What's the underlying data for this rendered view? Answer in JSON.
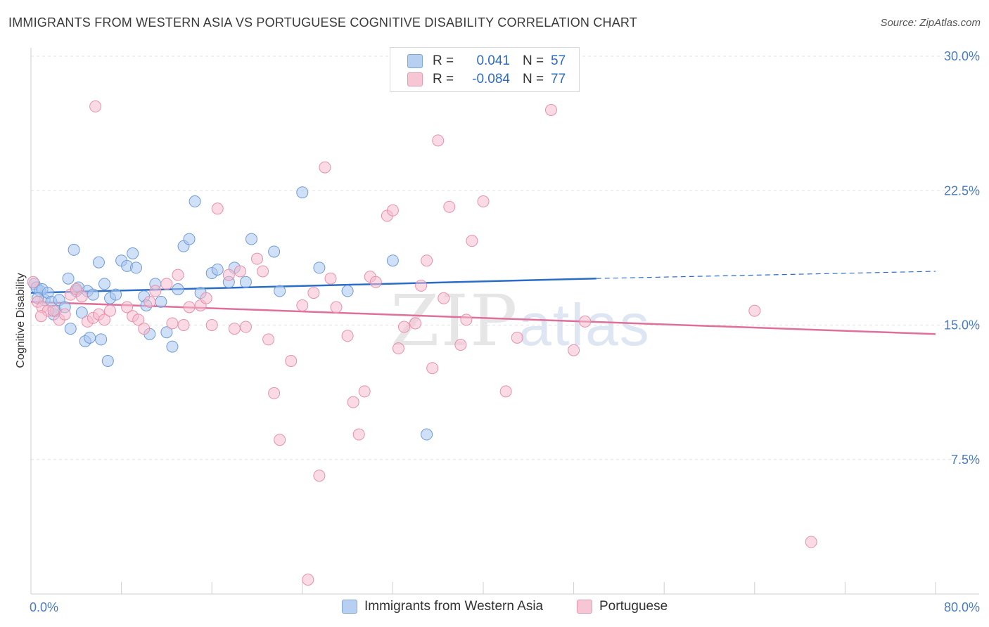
{
  "title": "IMMIGRANTS FROM WESTERN ASIA VS PORTUGUESE COGNITIVE DISABILITY CORRELATION CHART",
  "source": "Source: ZipAtlas.com",
  "watermark": {
    "zip": "ZIP",
    "atlas": "atlas"
  },
  "legend": {
    "r_label": "R =",
    "n_label": "N =",
    "rows": [
      {
        "r": "0.041",
        "n": "57",
        "color": "#b7cff0",
        "border": "#7fa6dd"
      },
      {
        "r": "-0.084",
        "n": "77",
        "color": "#f7c6d4",
        "border": "#e99ab1"
      }
    ]
  },
  "chart_data": {
    "type": "scatter",
    "title": "IMMIGRANTS FROM WESTERN ASIA VS PORTUGUESE COGNITIVE DISABILITY CORRELATION CHART",
    "xlabel": "",
    "ylabel": "Cognitive Disability",
    "xlim": [
      0,
      80
    ],
    "ylim": [
      0,
      30
    ],
    "x_tick_labels": [
      "0.0%",
      "80.0%"
    ],
    "y_ticks": [
      7.5,
      15.0,
      22.5,
      30.0
    ],
    "y_tick_labels": [
      "7.5%",
      "15.0%",
      "22.5%",
      "30.0%"
    ],
    "grid": true,
    "legend_position": "top-center",
    "series": [
      {
        "name": "Immigrants from Western Asia",
        "color": "#a9c6ef",
        "stroke": "#6f9bd8",
        "trend": {
          "x0": 0,
          "y0": 16.8,
          "x1": 50,
          "y1": 17.6,
          "x_dash_end": 80,
          "y_dash_end": 18.0,
          "color": "#2a6dc9"
        },
        "points": [
          [
            0.3,
            17.3
          ],
          [
            0.5,
            17.1
          ],
          [
            0.8,
            16.9
          ],
          [
            1.0,
            17.0
          ],
          [
            1.2,
            16.4
          ],
          [
            1.5,
            16.8
          ],
          [
            1.8,
            16.3
          ],
          [
            2.0,
            15.6
          ],
          [
            2.2,
            15.8
          ],
          [
            2.5,
            16.4
          ],
          [
            3.0,
            16.0
          ],
          [
            3.3,
            17.6
          ],
          [
            3.5,
            14.8
          ],
          [
            3.8,
            19.2
          ],
          [
            4.0,
            16.9
          ],
          [
            4.5,
            15.7
          ],
          [
            4.8,
            14.1
          ],
          [
            5.0,
            16.9
          ],
          [
            5.2,
            14.3
          ],
          [
            5.5,
            16.7
          ],
          [
            6.0,
            18.5
          ],
          [
            6.2,
            14.2
          ],
          [
            6.5,
            17.3
          ],
          [
            6.8,
            13.0
          ],
          [
            7.0,
            16.5
          ],
          [
            7.5,
            16.7
          ],
          [
            8.0,
            18.6
          ],
          [
            8.5,
            18.3
          ],
          [
            9.0,
            19.0
          ],
          [
            10.0,
            16.6
          ],
          [
            10.5,
            14.5
          ],
          [
            11.0,
            17.3
          ],
          [
            11.5,
            16.3
          ],
          [
            12.0,
            14.6
          ],
          [
            12.5,
            13.8
          ],
          [
            13.0,
            17.0
          ],
          [
            13.5,
            19.4
          ],
          [
            14.0,
            19.8
          ],
          [
            14.5,
            21.9
          ],
          [
            15.0,
            16.8
          ],
          [
            16.0,
            17.9
          ],
          [
            16.5,
            18.1
          ],
          [
            17.5,
            17.4
          ],
          [
            18.0,
            18.2
          ],
          [
            19.0,
            17.4
          ],
          [
            19.5,
            19.8
          ],
          [
            21.5,
            19.1
          ],
          [
            22.0,
            16.9
          ],
          [
            24.0,
            22.4
          ],
          [
            25.5,
            18.2
          ],
          [
            28.0,
            16.9
          ],
          [
            32.0,
            18.6
          ],
          [
            35.0,
            8.9
          ],
          [
            4.2,
            17.1
          ],
          [
            9.3,
            18.2
          ],
          [
            10.2,
            16.1
          ],
          [
            0.6,
            16.5
          ]
        ]
      },
      {
        "name": "Portuguese",
        "color": "#f5bccd",
        "stroke": "#e691ab",
        "trend": {
          "x0": 0,
          "y0": 16.3,
          "x1": 80,
          "y1": 14.5,
          "color": "#e0709a"
        },
        "points": [
          [
            0.2,
            17.4
          ],
          [
            0.6,
            16.3
          ],
          [
            1.0,
            16.0
          ],
          [
            1.5,
            15.8
          ],
          [
            2.0,
            15.8
          ],
          [
            2.5,
            15.3
          ],
          [
            3.0,
            15.6
          ],
          [
            3.5,
            16.7
          ],
          [
            4.0,
            17.0
          ],
          [
            4.5,
            16.6
          ],
          [
            5.0,
            15.2
          ],
          [
            5.5,
            15.4
          ],
          [
            6.0,
            15.6
          ],
          [
            6.5,
            15.3
          ],
          [
            7.0,
            15.8
          ],
          [
            8.5,
            16.0
          ],
          [
            9.0,
            15.5
          ],
          [
            9.5,
            15.3
          ],
          [
            10.0,
            14.8
          ],
          [
            10.5,
            16.3
          ],
          [
            11.0,
            16.9
          ],
          [
            12.0,
            17.3
          ],
          [
            12.5,
            15.1
          ],
          [
            13.0,
            17.8
          ],
          [
            13.5,
            15.0
          ],
          [
            14.0,
            16.0
          ],
          [
            15.0,
            16.1
          ],
          [
            15.5,
            16.5
          ],
          [
            16.0,
            15.0
          ],
          [
            16.5,
            21.5
          ],
          [
            17.5,
            17.8
          ],
          [
            18.0,
            14.8
          ],
          [
            18.5,
            18.0
          ],
          [
            19.0,
            14.9
          ],
          [
            20.0,
            18.7
          ],
          [
            20.5,
            18.0
          ],
          [
            21.0,
            14.2
          ],
          [
            21.5,
            11.2
          ],
          [
            22.0,
            8.6
          ],
          [
            23.0,
            13.0
          ],
          [
            24.0,
            16.1
          ],
          [
            24.5,
            0.8
          ],
          [
            25.0,
            16.8
          ],
          [
            25.5,
            6.6
          ],
          [
            26.0,
            23.8
          ],
          [
            26.5,
            17.6
          ],
          [
            27.0,
            16.0
          ],
          [
            28.0,
            14.4
          ],
          [
            28.5,
            10.7
          ],
          [
            29.0,
            8.9
          ],
          [
            29.5,
            11.3
          ],
          [
            30.0,
            17.7
          ],
          [
            30.5,
            17.4
          ],
          [
            31.5,
            21.1
          ],
          [
            32.0,
            21.4
          ],
          [
            32.5,
            13.7
          ],
          [
            33.0,
            14.9
          ],
          [
            34.0,
            15.1
          ],
          [
            34.5,
            17.2
          ],
          [
            35.0,
            18.6
          ],
          [
            35.5,
            12.6
          ],
          [
            36.0,
            25.3
          ],
          [
            36.5,
            16.5
          ],
          [
            37.0,
            21.6
          ],
          [
            38.0,
            13.9
          ],
          [
            38.5,
            15.3
          ],
          [
            39.0,
            19.7
          ],
          [
            40.0,
            21.9
          ],
          [
            42.0,
            11.3
          ],
          [
            43.0,
            14.3
          ],
          [
            46.0,
            27.0
          ],
          [
            48.0,
            13.6
          ],
          [
            49.0,
            15.2
          ],
          [
            64.0,
            15.8
          ],
          [
            69.0,
            2.9
          ],
          [
            5.7,
            27.2
          ],
          [
            0.9,
            15.5
          ]
        ]
      }
    ]
  }
}
